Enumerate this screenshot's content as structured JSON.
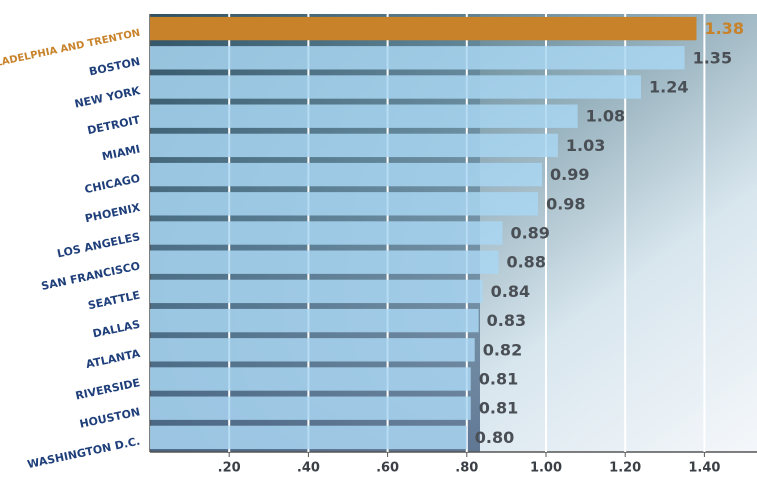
{
  "chart_data": {
    "type": "bar",
    "orientation": "horizontal",
    "categories": [
      "PHILADELPHIA AND TRENTON",
      "BOSTON",
      "NEW YORK",
      "DETROIT",
      "MIAMI",
      "CHICAGO",
      "PHOENIX",
      "LOS ANGELES",
      "SAN FRANCISCO",
      "SEATTLE",
      "DALLAS",
      "ATLANTA",
      "RIVERSIDE",
      "HOUSTON",
      "WASHINGTON D.C."
    ],
    "values": [
      1.38,
      1.35,
      1.24,
      1.08,
      1.03,
      0.99,
      0.98,
      0.89,
      0.88,
      0.84,
      0.83,
      0.82,
      0.81,
      0.81,
      0.8
    ],
    "value_labels": [
      "1.38",
      "1.35",
      "1.24",
      "1.08",
      "1.03",
      "0.99",
      "0.98",
      "0.89",
      "0.88",
      "0.84",
      "0.83",
      "0.82",
      "0.81",
      "0.81",
      "0.80"
    ],
    "colors": [
      "#c8822a",
      "#a9d6f2",
      "#a9d6f2",
      "#a9d6f2",
      "#a9d6f2",
      "#a9d6f2",
      "#a9d6f2",
      "#a9d6f2",
      "#a9d6f2",
      "#a9d6f2",
      "#a9d6f2",
      "#a9d6f2",
      "#a9d6f2",
      "#a9d6f2",
      "#a9d6f2"
    ],
    "xlim": [
      0,
      1.5
    ],
    "xticks": [
      {
        "value": 0.2,
        "label": ".20"
      },
      {
        "value": 0.4,
        "label": ".40"
      },
      {
        "value": 0.6,
        "label": ".60"
      },
      {
        "value": 0.8,
        "label": ".80"
      },
      {
        "value": 1.0,
        "label": "1.00"
      },
      {
        "value": 1.2,
        "label": "1.20"
      },
      {
        "value": 1.4,
        "label": "1.40"
      }
    ],
    "grid": true
  }
}
